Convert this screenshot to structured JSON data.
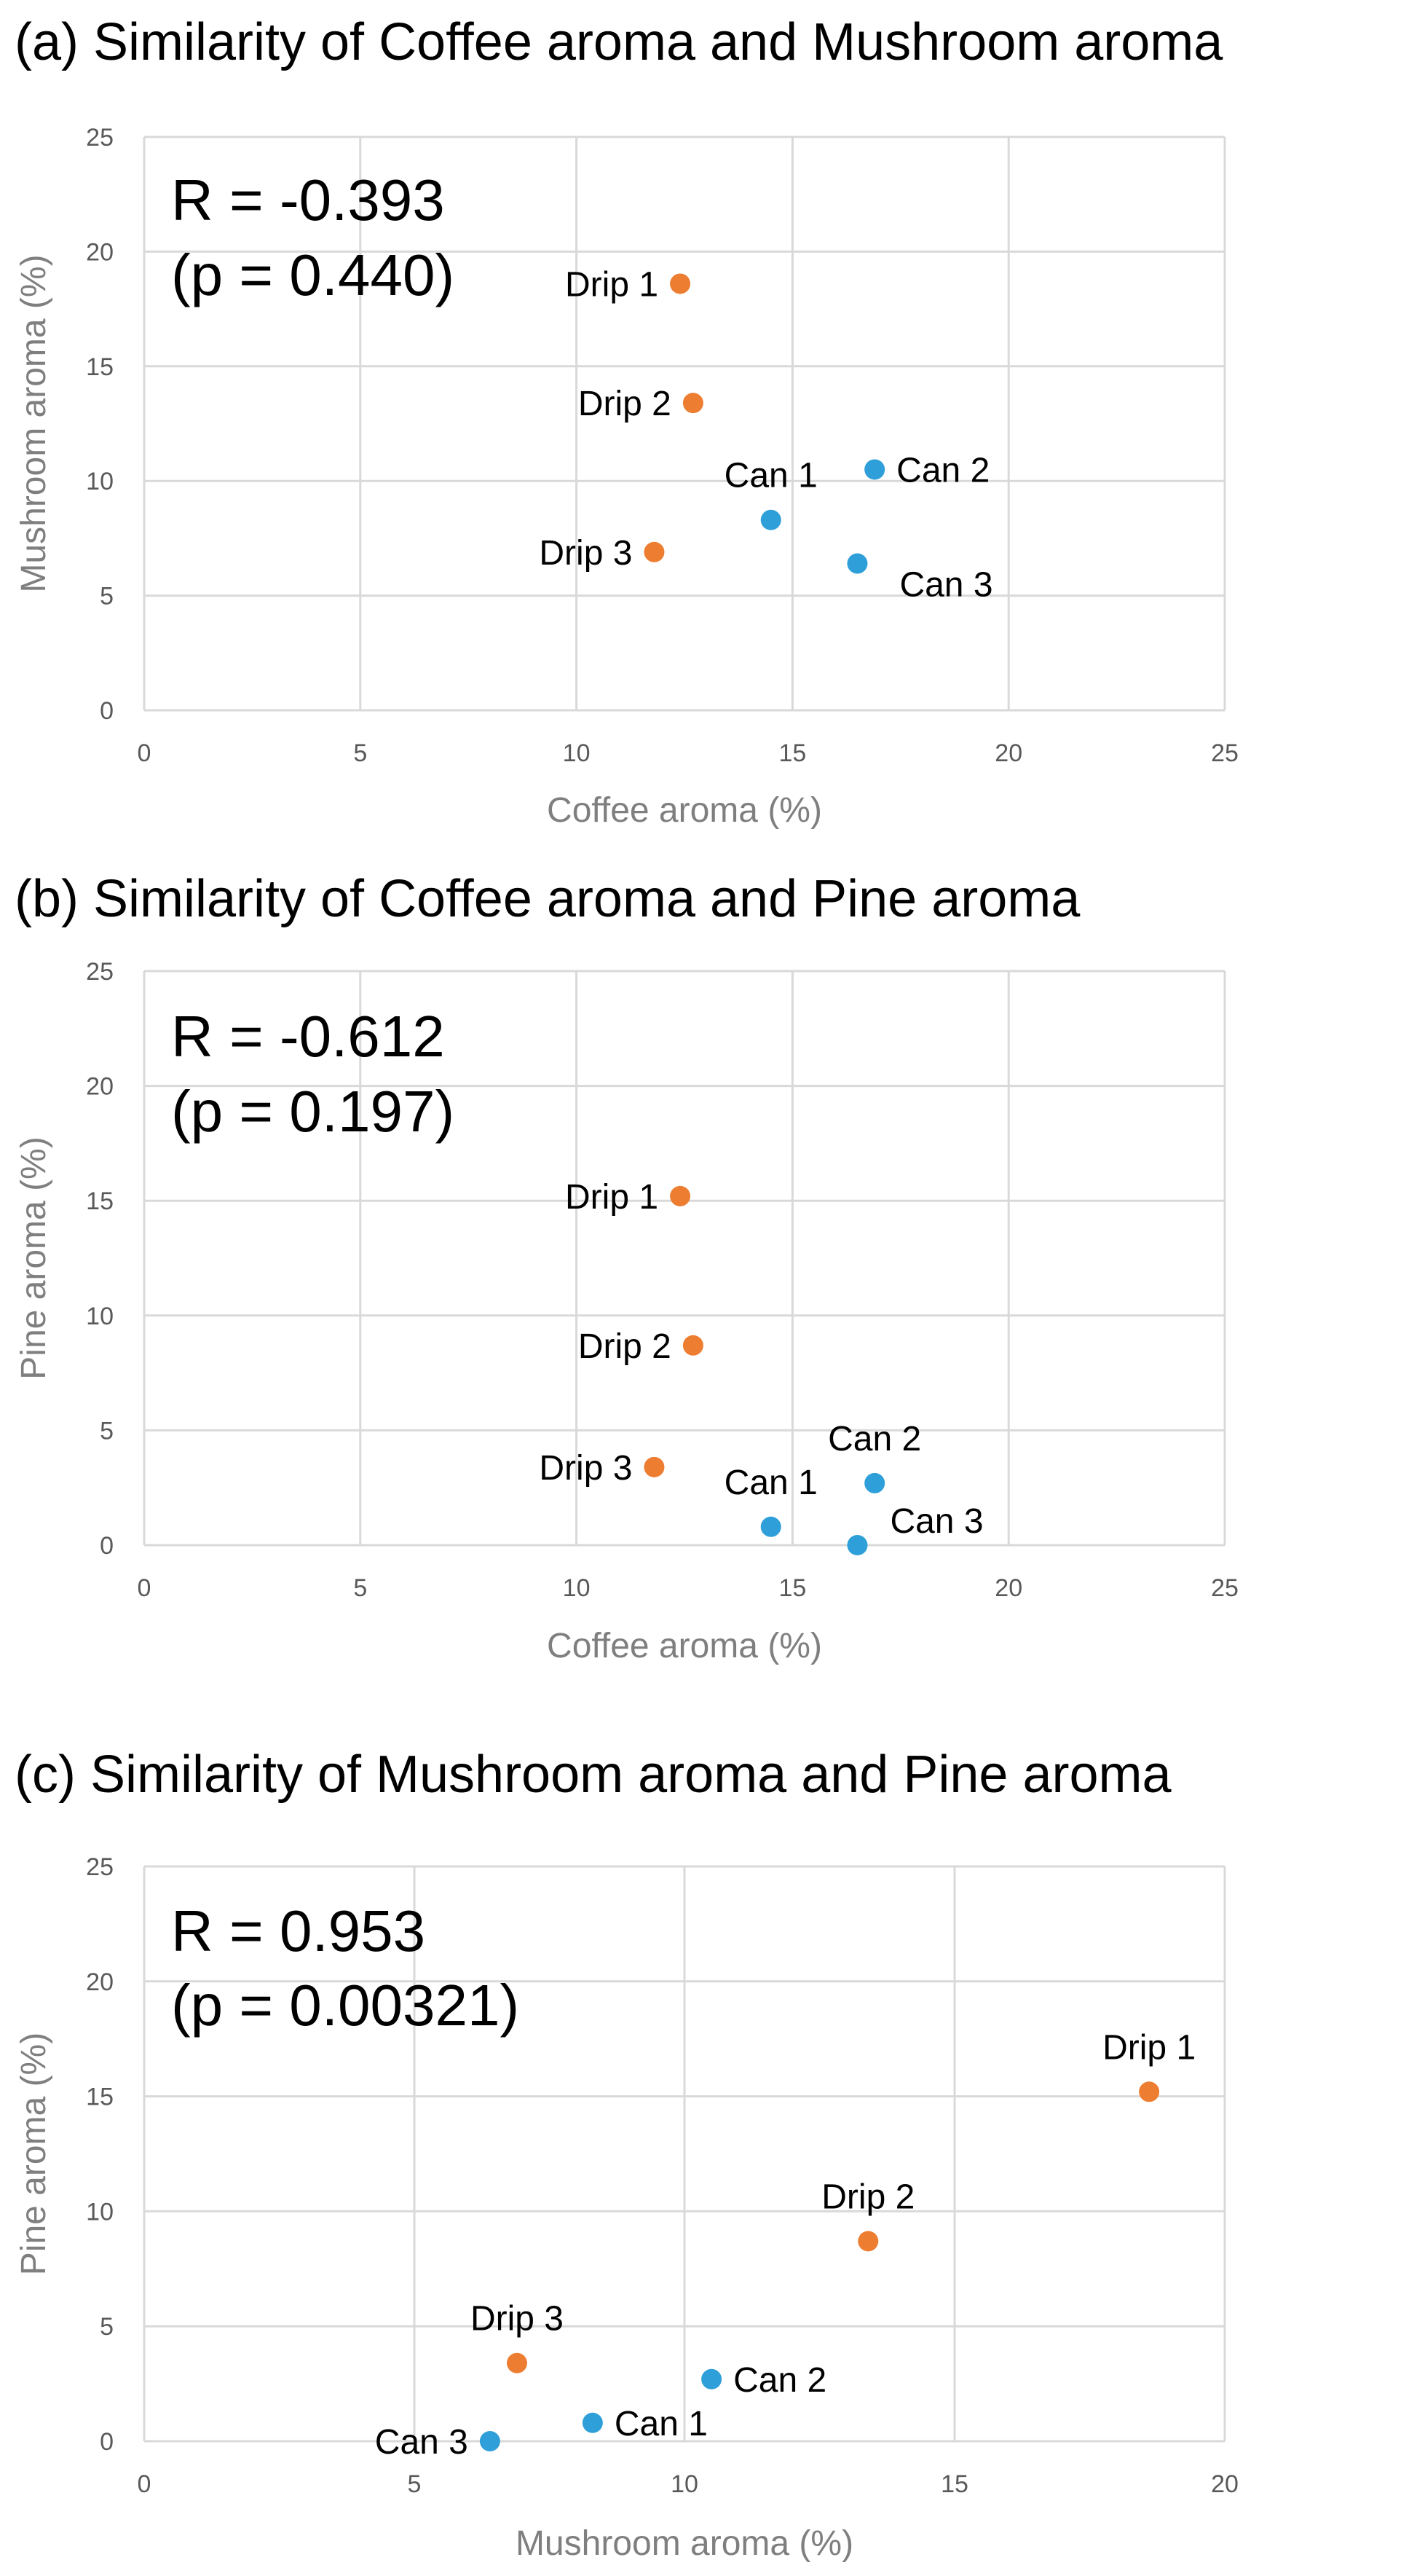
{
  "colors": {
    "drip": "#ED7D31",
    "can": "#2E9FD8",
    "grid": "#D9D9D9",
    "axis_title": "#7F7F7F",
    "tick": "#595959"
  },
  "chart_data": [
    {
      "type": "scatter",
      "title": "(a) Similarity of Coffee aroma and Mushroom aroma",
      "xlabel": "Coffee aroma (%)",
      "ylabel": "Mushroom aroma (%)",
      "xlim": [
        0,
        25
      ],
      "ylim": [
        0,
        25
      ],
      "xticks": [
        0,
        5,
        10,
        15,
        20,
        25
      ],
      "yticks": [
        0,
        5,
        10,
        15,
        20,
        25
      ],
      "stats": {
        "r": "R = -0.393",
        "p": "(p = 0.440)"
      },
      "points": [
        {
          "label": "Drip 1",
          "group": "drip",
          "x": 12.4,
          "y": 18.6,
          "label_pos": "left"
        },
        {
          "label": "Drip 2",
          "group": "drip",
          "x": 12.7,
          "y": 13.4,
          "label_pos": "left"
        },
        {
          "label": "Drip 3",
          "group": "drip",
          "x": 11.8,
          "y": 6.9,
          "label_pos": "left"
        },
        {
          "label": "Can 1",
          "group": "can",
          "x": 14.5,
          "y": 8.3,
          "label_pos": "above"
        },
        {
          "label": "Can 2",
          "group": "can",
          "x": 16.9,
          "y": 10.5,
          "label_pos": "right"
        },
        {
          "label": "Can 3",
          "group": "can",
          "x": 16.5,
          "y": 6.4,
          "label_pos": "right-low"
        }
      ]
    },
    {
      "type": "scatter",
      "title": "(b) Similarity of Coffee aroma and Pine aroma",
      "xlabel": "Coffee aroma (%)",
      "ylabel": "Pine aroma (%)",
      "xlim": [
        0,
        25
      ],
      "ylim": [
        0,
        25
      ],
      "xticks": [
        0,
        5,
        10,
        15,
        20,
        25
      ],
      "yticks": [
        0,
        5,
        10,
        15,
        20,
        25
      ],
      "stats": {
        "r": "R = -0.612",
        "p": "(p = 0.197)"
      },
      "points": [
        {
          "label": "Drip 1",
          "group": "drip",
          "x": 12.4,
          "y": 15.2,
          "label_pos": "left"
        },
        {
          "label": "Drip 2",
          "group": "drip",
          "x": 12.7,
          "y": 8.7,
          "label_pos": "left"
        },
        {
          "label": "Drip 3",
          "group": "drip",
          "x": 11.8,
          "y": 3.4,
          "label_pos": "left"
        },
        {
          "label": "Can 1",
          "group": "can",
          "x": 14.5,
          "y": 0.8,
          "label_pos": "above"
        },
        {
          "label": "Can 2",
          "group": "can",
          "x": 16.9,
          "y": 2.7,
          "label_pos": "above"
        },
        {
          "label": "Can 3",
          "group": "can",
          "x": 16.5,
          "y": 0.0,
          "label_pos": "right-high"
        }
      ]
    },
    {
      "type": "scatter",
      "title": "(c) Similarity of Mushroom aroma and Pine aroma",
      "xlabel": "Mushroom aroma (%)",
      "ylabel": "Pine aroma (%)",
      "xlim": [
        0,
        20
      ],
      "ylim": [
        0,
        25
      ],
      "xticks": [
        0,
        5,
        10,
        15,
        20
      ],
      "yticks": [
        0,
        5,
        10,
        15,
        20,
        25
      ],
      "stats": {
        "r": "R = 0.953",
        "p": "(p = 0.00321)"
      },
      "points": [
        {
          "label": "Drip 1",
          "group": "drip",
          "x": 18.6,
          "y": 15.2,
          "label_pos": "above"
        },
        {
          "label": "Drip 2",
          "group": "drip",
          "x": 13.4,
          "y": 8.7,
          "label_pos": "above"
        },
        {
          "label": "Drip 3",
          "group": "drip",
          "x": 6.9,
          "y": 3.4,
          "label_pos": "above"
        },
        {
          "label": "Can 1",
          "group": "can",
          "x": 8.3,
          "y": 0.8,
          "label_pos": "right"
        },
        {
          "label": "Can 2",
          "group": "can",
          "x": 10.5,
          "y": 2.7,
          "label_pos": "right"
        },
        {
          "label": "Can 3",
          "group": "can",
          "x": 6.4,
          "y": 0.0,
          "label_pos": "left"
        }
      ]
    }
  ]
}
